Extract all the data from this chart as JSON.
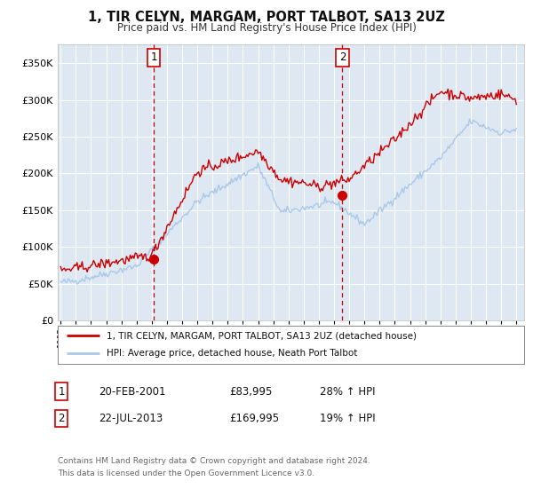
{
  "title": "1, TIR CELYN, MARGAM, PORT TALBOT, SA13 2UZ",
  "subtitle": "Price paid vs. HM Land Registry's House Price Index (HPI)",
  "background_color": "#ffffff",
  "plot_bg_color": "#dde8f3",
  "grid_color": "#ffffff",
  "red_line_color": "#cc0000",
  "blue_line_color": "#aac8e8",
  "marker1_date": 2001.13,
  "marker1_value": 83995,
  "marker2_date": 2013.55,
  "marker2_value": 169995,
  "marker1_label": "1",
  "marker2_label": "2",
  "vline_color": "#cc0000",
  "ylim_max": 375000,
  "ylim_min": 0,
  "xlim_min": 1994.8,
  "xlim_max": 2025.5,
  "legend_red_label": "1, TIR CELYN, MARGAM, PORT TALBOT, SA13 2UZ (detached house)",
  "legend_blue_label": "HPI: Average price, detached house, Neath Port Talbot",
  "table_row1": [
    "1",
    "20-FEB-2001",
    "£83,995",
    "28% ↑ HPI"
  ],
  "table_row2": [
    "2",
    "22-JUL-2013",
    "£169,995",
    "19% ↑ HPI"
  ],
  "footnote1": "Contains HM Land Registry data © Crown copyright and database right 2024.",
  "footnote2": "This data is licensed under the Open Government Licence v3.0."
}
